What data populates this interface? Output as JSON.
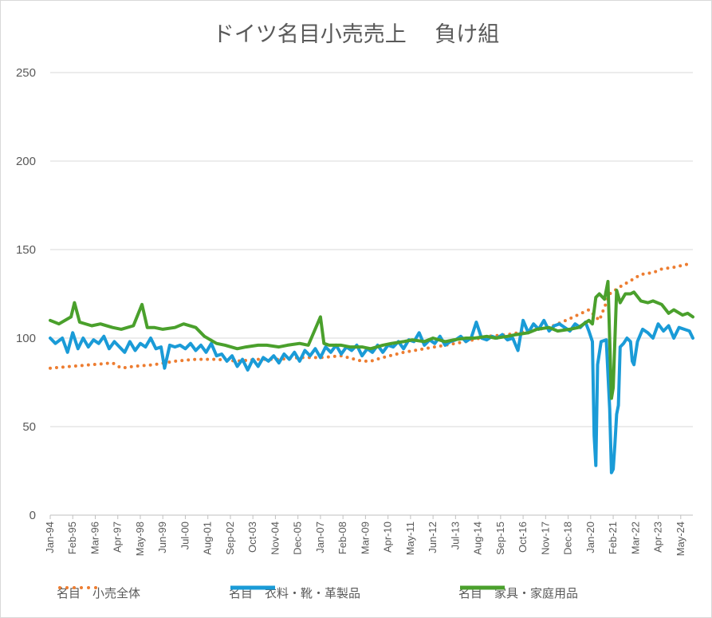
{
  "chart_data": {
    "type": "line",
    "title": "ドイツ名目小売売上　 負け組",
    "xlabel": "",
    "ylabel": "",
    "ylim": [
      0,
      250
    ],
    "yticks": [
      0,
      50,
      100,
      150,
      200,
      250
    ],
    "x_start": "1994-01",
    "x_end": "2024-12",
    "x_tick_labels": [
      "Jan-94",
      "Feb-95",
      "Mar-96",
      "Apr-97",
      "May-98",
      "Jun-99",
      "Jul-00",
      "Aug-01",
      "Sep-02",
      "Oct-03",
      "Nov-04",
      "Dec-05",
      "Jan-07",
      "Feb-08",
      "Mar-09",
      "Apr-10",
      "May-11",
      "Jun-12",
      "Jul-13",
      "Aug-14",
      "Sep-15",
      "Oct-16",
      "Nov-17",
      "Dec-18",
      "Jan-20",
      "Feb-21",
      "Mar-22",
      "Apr-23",
      "May-24"
    ],
    "grid": true,
    "legend_position": "bottom",
    "series": [
      {
        "name": "名目　小売全体",
        "color": "#ed7d31",
        "style": "dotted",
        "points": [
          [
            "1994-01",
            83
          ],
          [
            "1995-01",
            84
          ],
          [
            "1996-01",
            85
          ],
          [
            "1997-01",
            86
          ],
          [
            "1997-06",
            83
          ],
          [
            "1998-01",
            84
          ],
          [
            "1999-01",
            85
          ],
          [
            "2000-01",
            87
          ],
          [
            "2001-01",
            88
          ],
          [
            "2002-01",
            88
          ],
          [
            "2003-01",
            87
          ],
          [
            "2004-01",
            88
          ],
          [
            "2005-01",
            88
          ],
          [
            "2006-01",
            89
          ],
          [
            "2007-01",
            89
          ],
          [
            "2008-01",
            90
          ],
          [
            "2009-01",
            87
          ],
          [
            "2009-06",
            87
          ],
          [
            "2010-01",
            89
          ],
          [
            "2011-01",
            92
          ],
          [
            "2012-01",
            94
          ],
          [
            "2013-01",
            96
          ],
          [
            "2014-01",
            98
          ],
          [
            "2015-01",
            101
          ],
          [
            "2016-01",
            102
          ],
          [
            "2017-01",
            104
          ],
          [
            "2018-01",
            106
          ],
          [
            "2019-01",
            111
          ],
          [
            "2019-12",
            116
          ],
          [
            "2020-06",
            110
          ],
          [
            "2020-12",
            125
          ],
          [
            "2021-06",
            129
          ],
          [
            "2022-01",
            133
          ],
          [
            "2022-06",
            136
          ],
          [
            "2023-01",
            137
          ],
          [
            "2023-06",
            139
          ],
          [
            "2024-01",
            140
          ],
          [
            "2024-10",
            142
          ]
        ]
      },
      {
        "name": "名目　衣料・靴・革製品",
        "color": "#1a9bd7",
        "style": "solid",
        "points": [
          [
            "1994-01",
            100
          ],
          [
            "1994-04",
            97
          ],
          [
            "1994-08",
            100
          ],
          [
            "1994-11",
            92
          ],
          [
            "1995-02",
            103
          ],
          [
            "1995-05",
            94
          ],
          [
            "1995-08",
            100
          ],
          [
            "1995-11",
            95
          ],
          [
            "1996-02",
            99
          ],
          [
            "1996-05",
            97
          ],
          [
            "1996-08",
            101
          ],
          [
            "1996-11",
            94
          ],
          [
            "1997-02",
            98
          ],
          [
            "1997-05",
            95
          ],
          [
            "1997-08",
            92
          ],
          [
            "1997-11",
            98
          ],
          [
            "1998-02",
            93
          ],
          [
            "1998-05",
            97
          ],
          [
            "1998-08",
            95
          ],
          [
            "1998-11",
            100
          ],
          [
            "1999-02",
            94
          ],
          [
            "1999-05",
            95
          ],
          [
            "1999-07",
            83
          ],
          [
            "1999-10",
            96
          ],
          [
            "2000-01",
            95
          ],
          [
            "2000-04",
            96
          ],
          [
            "2000-07",
            94
          ],
          [
            "2000-10",
            97
          ],
          [
            "2001-01",
            93
          ],
          [
            "2001-04",
            96
          ],
          [
            "2001-07",
            92
          ],
          [
            "2001-10",
            97
          ],
          [
            "2002-01",
            90
          ],
          [
            "2002-04",
            91
          ],
          [
            "2002-07",
            87
          ],
          [
            "2002-10",
            90
          ],
          [
            "2003-01",
            84
          ],
          [
            "2003-04",
            88
          ],
          [
            "2003-07",
            82
          ],
          [
            "2003-10",
            88
          ],
          [
            "2004-01",
            84
          ],
          [
            "2004-04",
            89
          ],
          [
            "2004-07",
            87
          ],
          [
            "2004-10",
            90
          ],
          [
            "2005-01",
            86
          ],
          [
            "2005-04",
            91
          ],
          [
            "2005-07",
            88
          ],
          [
            "2005-10",
            92
          ],
          [
            "2006-01",
            87
          ],
          [
            "2006-04",
            93
          ],
          [
            "2006-07",
            90
          ],
          [
            "2006-10",
            94
          ],
          [
            "2007-01",
            89
          ],
          [
            "2007-04",
            95
          ],
          [
            "2007-07",
            92
          ],
          [
            "2007-10",
            96
          ],
          [
            "2008-01",
            91
          ],
          [
            "2008-04",
            95
          ],
          [
            "2008-07",
            93
          ],
          [
            "2008-10",
            96
          ],
          [
            "2009-01",
            90
          ],
          [
            "2009-04",
            94
          ],
          [
            "2009-07",
            92
          ],
          [
            "2009-10",
            96
          ],
          [
            "2010-01",
            92
          ],
          [
            "2010-04",
            96
          ],
          [
            "2010-07",
            95
          ],
          [
            "2010-10",
            98
          ],
          [
            "2011-01",
            94
          ],
          [
            "2011-04",
            99
          ],
          [
            "2011-07",
            98
          ],
          [
            "2011-10",
            103
          ],
          [
            "2012-01",
            96
          ],
          [
            "2012-04",
            99
          ],
          [
            "2012-07",
            97
          ],
          [
            "2012-10",
            101
          ],
          [
            "2013-01",
            96
          ],
          [
            "2013-04",
            98
          ],
          [
            "2013-07",
            99
          ],
          [
            "2013-10",
            101
          ],
          [
            "2014-01",
            98
          ],
          [
            "2014-04",
            100
          ],
          [
            "2014-07",
            109
          ],
          [
            "2014-10",
            100
          ],
          [
            "2015-01",
            99
          ],
          [
            "2015-04",
            101
          ],
          [
            "2015-07",
            100
          ],
          [
            "2015-10",
            102
          ],
          [
            "2016-01",
            99
          ],
          [
            "2016-04",
            100
          ],
          [
            "2016-07",
            93
          ],
          [
            "2016-10",
            110
          ],
          [
            "2017-01",
            103
          ],
          [
            "2017-04",
            108
          ],
          [
            "2017-07",
            105
          ],
          [
            "2017-10",
            110
          ],
          [
            "2018-01",
            104
          ],
          [
            "2018-04",
            107
          ],
          [
            "2018-07",
            108
          ],
          [
            "2018-10",
            106
          ],
          [
            "2019-01",
            104
          ],
          [
            "2019-04",
            108
          ],
          [
            "2019-07",
            106
          ],
          [
            "2019-10",
            109
          ],
          [
            "2019-12",
            104
          ],
          [
            "2020-02",
            98
          ],
          [
            "2020-03",
            45
          ],
          [
            "2020-04",
            28
          ],
          [
            "2020-05",
            85
          ],
          [
            "2020-07",
            98
          ],
          [
            "2020-10",
            99
          ],
          [
            "2020-12",
            60
          ],
          [
            "2021-01",
            24
          ],
          [
            "2021-02",
            26
          ],
          [
            "2021-03",
            40
          ],
          [
            "2021-04",
            57
          ],
          [
            "2021-05",
            62
          ],
          [
            "2021-06",
            95
          ],
          [
            "2021-08",
            97
          ],
          [
            "2021-10",
            100
          ],
          [
            "2021-12",
            98
          ],
          [
            "2022-01",
            87
          ],
          [
            "2022-02",
            85
          ],
          [
            "2022-04",
            98
          ],
          [
            "2022-07",
            105
          ],
          [
            "2022-10",
            103
          ],
          [
            "2023-01",
            100
          ],
          [
            "2023-04",
            108
          ],
          [
            "2023-07",
            104
          ],
          [
            "2023-10",
            107
          ],
          [
            "2024-01",
            100
          ],
          [
            "2024-04",
            106
          ],
          [
            "2024-07",
            105
          ],
          [
            "2024-10",
            104
          ],
          [
            "2024-12",
            100
          ]
        ]
      },
      {
        "name": "名目　家具・家庭用品",
        "color": "#4aa02c",
        "style": "solid",
        "points": [
          [
            "1994-01",
            110
          ],
          [
            "1994-06",
            108
          ],
          [
            "1995-01",
            112
          ],
          [
            "1995-03",
            120
          ],
          [
            "1995-06",
            109
          ],
          [
            "1996-01",
            107
          ],
          [
            "1996-06",
            108
          ],
          [
            "1997-01",
            106
          ],
          [
            "1997-06",
            105
          ],
          [
            "1998-01",
            107
          ],
          [
            "1998-06",
            119
          ],
          [
            "1998-09",
            106
          ],
          [
            "1999-01",
            106
          ],
          [
            "1999-06",
            105
          ],
          [
            "2000-01",
            106
          ],
          [
            "2000-06",
            108
          ],
          [
            "2001-01",
            106
          ],
          [
            "2001-06",
            101
          ],
          [
            "2002-01",
            97
          ],
          [
            "2002-06",
            96
          ],
          [
            "2003-01",
            94
          ],
          [
            "2003-06",
            95
          ],
          [
            "2004-01",
            96
          ],
          [
            "2004-06",
            96
          ],
          [
            "2005-01",
            95
          ],
          [
            "2005-06",
            96
          ],
          [
            "2006-01",
            97
          ],
          [
            "2006-06",
            96
          ],
          [
            "2007-01",
            112
          ],
          [
            "2007-03",
            97
          ],
          [
            "2007-06",
            96
          ],
          [
            "2008-01",
            96
          ],
          [
            "2008-06",
            95
          ],
          [
            "2009-01",
            95
          ],
          [
            "2009-06",
            94
          ],
          [
            "2010-01",
            96
          ],
          [
            "2010-06",
            97
          ],
          [
            "2011-01",
            98
          ],
          [
            "2011-06",
            99
          ],
          [
            "2012-01",
            98
          ],
          [
            "2012-06",
            100
          ],
          [
            "2013-01",
            98
          ],
          [
            "2013-06",
            99
          ],
          [
            "2014-01",
            100
          ],
          [
            "2014-06",
            100
          ],
          [
            "2015-01",
            101
          ],
          [
            "2015-06",
            100
          ],
          [
            "2016-01",
            101
          ],
          [
            "2016-06",
            102
          ],
          [
            "2017-01",
            103
          ],
          [
            "2017-06",
            105
          ],
          [
            "2018-01",
            106
          ],
          [
            "2018-06",
            104
          ],
          [
            "2019-01",
            105
          ],
          [
            "2019-06",
            106
          ],
          [
            "2019-12",
            110
          ],
          [
            "2020-02",
            108
          ],
          [
            "2020-04",
            123
          ],
          [
            "2020-06",
            125
          ],
          [
            "2020-09",
            122
          ],
          [
            "2020-11",
            132
          ],
          [
            "2021-01",
            66
          ],
          [
            "2021-02",
            72
          ],
          [
            "2021-04",
            127
          ],
          [
            "2021-06",
            120
          ],
          [
            "2021-09",
            125
          ],
          [
            "2021-12",
            125
          ],
          [
            "2022-02",
            126
          ],
          [
            "2022-06",
            121
          ],
          [
            "2022-10",
            120
          ],
          [
            "2023-01",
            121
          ],
          [
            "2023-06",
            119
          ],
          [
            "2023-10",
            114
          ],
          [
            "2024-01",
            116
          ],
          [
            "2024-06",
            113
          ],
          [
            "2024-09",
            114
          ],
          [
            "2024-12",
            112
          ]
        ]
      }
    ]
  }
}
